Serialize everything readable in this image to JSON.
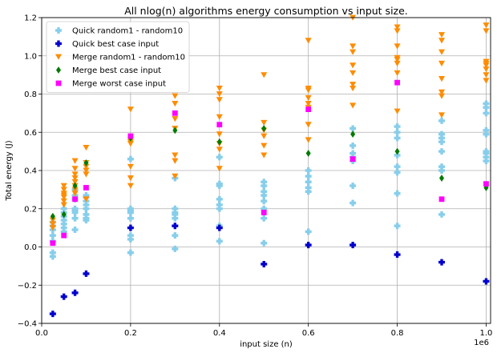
{
  "chart_data": {
    "type": "scatter",
    "title": "All nlog(n) algorithms energy consumption vs input size.",
    "xlabel": "input size (n)",
    "ylabel": "Total energy (J)",
    "x_offset_label": "1e6",
    "x_scale": 1000000,
    "xlim": [
      0,
      1010000
    ],
    "ylim": [
      -0.4,
      1.2
    ],
    "x_ticks": [
      0,
      200000,
      400000,
      600000,
      800000,
      1000000
    ],
    "x_tick_labels": [
      "0.0",
      "0.2",
      "0.4",
      "0.6",
      "0.8",
      "1.0"
    ],
    "y_ticks": [
      -0.4,
      -0.2,
      0.0,
      0.2,
      0.4,
      0.6,
      0.8,
      1.0,
      1.2
    ],
    "y_tick_labels": [
      "−0.4",
      "−0.2",
      "0.0",
      "0.2",
      "0.4",
      "0.6",
      "0.8",
      "1.0",
      "1.2"
    ],
    "grid": true,
    "legend_position": "top-left",
    "series": [
      {
        "name": "Quick random1 - random10",
        "marker": "plus",
        "color": "#87ceeb",
        "points": [
          [
            25000,
            -0.05
          ],
          [
            25000,
            -0.03
          ],
          [
            25000,
            0.03
          ],
          [
            25000,
            0.06
          ],
          [
            25000,
            0.09
          ],
          [
            25000,
            0.11
          ],
          [
            25000,
            0.13
          ],
          [
            50000,
            0.08
          ],
          [
            50000,
            0.1
          ],
          [
            50000,
            0.12
          ],
          [
            50000,
            0.14
          ],
          [
            50000,
            0.16
          ],
          [
            50000,
            0.18
          ],
          [
            50000,
            0.2
          ],
          [
            75000,
            0.09
          ],
          [
            75000,
            0.15
          ],
          [
            75000,
            0.18
          ],
          [
            75000,
            0.19
          ],
          [
            75000,
            0.2
          ],
          [
            75000,
            0.25
          ],
          [
            75000,
            0.27
          ],
          [
            75000,
            0.3
          ],
          [
            100000,
            0.14
          ],
          [
            100000,
            0.15
          ],
          [
            100000,
            0.17
          ],
          [
            100000,
            0.2
          ],
          [
            100000,
            0.22
          ],
          [
            100000,
            0.24
          ],
          [
            100000,
            0.26
          ],
          [
            100000,
            0.27
          ],
          [
            200000,
            -0.03
          ],
          [
            200000,
            0.04
          ],
          [
            200000,
            0.06
          ],
          [
            200000,
            0.15
          ],
          [
            200000,
            0.18
          ],
          [
            200000,
            0.19
          ],
          [
            200000,
            0.2
          ],
          [
            200000,
            0.46
          ],
          [
            300000,
            -0.01
          ],
          [
            300000,
            0.06
          ],
          [
            300000,
            0.15
          ],
          [
            300000,
            0.17
          ],
          [
            300000,
            0.18
          ],
          [
            300000,
            0.2
          ],
          [
            300000,
            0.36
          ],
          [
            400000,
            0.03
          ],
          [
            400000,
            0.11
          ],
          [
            400000,
            0.2
          ],
          [
            400000,
            0.22
          ],
          [
            400000,
            0.25
          ],
          [
            400000,
            0.32
          ],
          [
            400000,
            0.33
          ],
          [
            400000,
            0.47
          ],
          [
            500000,
            0.02
          ],
          [
            500000,
            0.15
          ],
          [
            500000,
            0.2
          ],
          [
            500000,
            0.24
          ],
          [
            500000,
            0.27
          ],
          [
            500000,
            0.29
          ],
          [
            500000,
            0.32
          ],
          [
            500000,
            0.34
          ],
          [
            600000,
            0.08
          ],
          [
            600000,
            0.29
          ],
          [
            600000,
            0.31
          ],
          [
            600000,
            0.34
          ],
          [
            600000,
            0.37
          ],
          [
            600000,
            0.4
          ],
          [
            700000,
            0.23
          ],
          [
            700000,
            0.32
          ],
          [
            700000,
            0.45
          ],
          [
            700000,
            0.47
          ],
          [
            700000,
            0.49
          ],
          [
            700000,
            0.53
          ],
          [
            700000,
            0.62
          ],
          [
            800000,
            0.11
          ],
          [
            800000,
            0.28
          ],
          [
            800000,
            0.39
          ],
          [
            800000,
            0.42
          ],
          [
            800000,
            0.48
          ],
          [
            800000,
            0.57
          ],
          [
            800000,
            0.6
          ],
          [
            800000,
            0.63
          ],
          [
            900000,
            0.17
          ],
          [
            900000,
            0.4
          ],
          [
            900000,
            0.42
          ],
          [
            900000,
            0.5
          ],
          [
            900000,
            0.55
          ],
          [
            900000,
            0.57
          ],
          [
            900000,
            0.59
          ],
          [
            900000,
            0.66
          ],
          [
            1000000,
            0.45
          ],
          [
            1000000,
            0.47
          ],
          [
            1000000,
            0.49
          ],
          [
            1000000,
            0.5
          ],
          [
            1000000,
            0.59
          ],
          [
            1000000,
            0.61
          ],
          [
            1000000,
            0.7
          ],
          [
            1000000,
            0.73
          ],
          [
            1000000,
            0.75
          ]
        ]
      },
      {
        "name": "Quick best case input",
        "marker": "plus",
        "color": "#0000cd",
        "points": [
          [
            25000,
            -0.35
          ],
          [
            50000,
            -0.26
          ],
          [
            75000,
            -0.24
          ],
          [
            100000,
            -0.14
          ],
          [
            200000,
            0.1
          ],
          [
            300000,
            0.11
          ],
          [
            400000,
            0.1
          ],
          [
            500000,
            -0.09
          ],
          [
            600000,
            0.01
          ],
          [
            700000,
            0.01
          ],
          [
            800000,
            -0.04
          ],
          [
            900000,
            -0.08
          ],
          [
            1000000,
            -0.18
          ]
        ]
      },
      {
        "name": "Merge random1 - random10",
        "marker": "triangle-down",
        "color": "#ff8c00",
        "points": [
          [
            25000,
            0.1
          ],
          [
            25000,
            0.12
          ],
          [
            25000,
            0.14
          ],
          [
            50000,
            0.22
          ],
          [
            50000,
            0.24
          ],
          [
            50000,
            0.26
          ],
          [
            50000,
            0.27
          ],
          [
            50000,
            0.28
          ],
          [
            50000,
            0.3
          ],
          [
            50000,
            0.32
          ],
          [
            75000,
            0.28
          ],
          [
            75000,
            0.3
          ],
          [
            75000,
            0.32
          ],
          [
            75000,
            0.34
          ],
          [
            75000,
            0.36
          ],
          [
            75000,
            0.38
          ],
          [
            75000,
            0.41
          ],
          [
            75000,
            0.45
          ],
          [
            100000,
            0.25
          ],
          [
            100000,
            0.38
          ],
          [
            100000,
            0.4
          ],
          [
            100000,
            0.42
          ],
          [
            100000,
            0.44
          ],
          [
            100000,
            0.52
          ],
          [
            200000,
            0.32
          ],
          [
            200000,
            0.36
          ],
          [
            200000,
            0.42
          ],
          [
            200000,
            0.54
          ],
          [
            200000,
            0.55
          ],
          [
            200000,
            0.56
          ],
          [
            200000,
            0.72
          ],
          [
            300000,
            0.37
          ],
          [
            300000,
            0.45
          ],
          [
            300000,
            0.48
          ],
          [
            300000,
            0.62
          ],
          [
            300000,
            0.67
          ],
          [
            300000,
            0.75
          ],
          [
            300000,
            0.79
          ],
          [
            400000,
            0.41
          ],
          [
            400000,
            0.51
          ],
          [
            400000,
            0.54
          ],
          [
            400000,
            0.59
          ],
          [
            400000,
            0.68
          ],
          [
            400000,
            0.77
          ],
          [
            400000,
            0.8
          ],
          [
            400000,
            0.83
          ],
          [
            500000,
            0.48
          ],
          [
            500000,
            0.53
          ],
          [
            500000,
            0.58
          ],
          [
            500000,
            0.61
          ],
          [
            500000,
            0.65
          ],
          [
            500000,
            0.9
          ],
          [
            600000,
            0.56
          ],
          [
            600000,
            0.64
          ],
          [
            600000,
            0.73
          ],
          [
            600000,
            0.75
          ],
          [
            600000,
            0.78
          ],
          [
            600000,
            0.82
          ],
          [
            600000,
            0.83
          ],
          [
            600000,
            1.08
          ],
          [
            700000,
            0.74
          ],
          [
            700000,
            0.83
          ],
          [
            700000,
            0.85
          ],
          [
            700000,
            0.91
          ],
          [
            700000,
            0.95
          ],
          [
            700000,
            1.02
          ],
          [
            700000,
            1.05
          ],
          [
            700000,
            1.2
          ],
          [
            800000,
            0.71
          ],
          [
            800000,
            0.91
          ],
          [
            800000,
            0.96
          ],
          [
            800000,
            0.98
          ],
          [
            800000,
            0.99
          ],
          [
            800000,
            1.05
          ],
          [
            800000,
            1.13
          ],
          [
            800000,
            1.15
          ],
          [
            900000,
            0.69
          ],
          [
            900000,
            0.79
          ],
          [
            900000,
            0.81
          ],
          [
            900000,
            0.88
          ],
          [
            900000,
            0.96
          ],
          [
            900000,
            1.02
          ],
          [
            900000,
            1.08
          ],
          [
            900000,
            1.11
          ],
          [
            1000000,
            0.87
          ],
          [
            1000000,
            0.9
          ],
          [
            1000000,
            0.93
          ],
          [
            1000000,
            0.95
          ],
          [
            1000000,
            0.96
          ],
          [
            1000000,
            0.97
          ],
          [
            1000000,
            1.13
          ],
          [
            1000000,
            1.16
          ]
        ]
      },
      {
        "name": "Merge best case input",
        "marker": "diamond",
        "color": "#007a00",
        "points": [
          [
            25000,
            0.16
          ],
          [
            50000,
            0.17
          ],
          [
            75000,
            0.32
          ],
          [
            100000,
            0.44
          ],
          [
            200000,
            0.57
          ],
          [
            300000,
            0.61
          ],
          [
            400000,
            0.55
          ],
          [
            500000,
            0.62
          ],
          [
            600000,
            0.49
          ],
          [
            700000,
            0.59
          ],
          [
            800000,
            0.5
          ],
          [
            900000,
            0.36
          ],
          [
            1000000,
            0.31
          ]
        ]
      },
      {
        "name": "Merge worst case input",
        "marker": "square",
        "color": "#ff00ff",
        "points": [
          [
            25000,
            0.02
          ],
          [
            50000,
            0.06
          ],
          [
            75000,
            0.25
          ],
          [
            100000,
            0.31
          ],
          [
            200000,
            0.58
          ],
          [
            300000,
            0.7
          ],
          [
            400000,
            0.64
          ],
          [
            500000,
            0.18
          ],
          [
            600000,
            0.72
          ],
          [
            700000,
            0.46
          ],
          [
            800000,
            0.86
          ],
          [
            900000,
            0.25
          ],
          [
            1000000,
            0.33
          ]
        ]
      }
    ]
  }
}
